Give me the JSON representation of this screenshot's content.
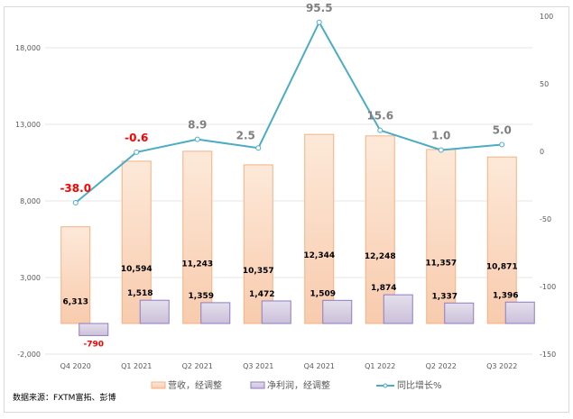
{
  "chart_data": {
    "type": "bar+line",
    "categories": [
      "Q4 2020",
      "Q1 2021",
      "Q2 2021",
      "Q3 2021",
      "Q4 2021",
      "Q1 2022",
      "Q2 2022",
      "Q3 2022"
    ],
    "series": [
      {
        "name": "营收，经调整",
        "type": "bar",
        "axis": "left",
        "values": [
          6313,
          10594,
          11243,
          10357,
          12344,
          12248,
          11357,
          10871
        ],
        "labels": [
          "6,313",
          "10,594",
          "11,243",
          "10,357",
          "12,344",
          "12,248",
          "11,357",
          "10,871"
        ],
        "color": "#F4B183"
      },
      {
        "name": "净利润，经调整",
        "type": "bar",
        "axis": "left",
        "values": [
          -790,
          1518,
          1359,
          1472,
          1509,
          1874,
          1337,
          1396
        ],
        "labels": [
          "-790",
          "1,518",
          "1,359",
          "1,472",
          "1,509",
          "1,874",
          "1,337",
          "1,396"
        ],
        "color": "#B4A7D6"
      },
      {
        "name": "同比增长%",
        "type": "line",
        "axis": "right",
        "values": [
          -38.0,
          -0.6,
          8.9,
          2.5,
          95.5,
          15.6,
          1.0,
          5.0
        ],
        "labels": [
          "-38.0",
          "-0.6",
          "8.9",
          "2.5",
          "95.5",
          "15.6",
          "1.0",
          "5.0"
        ],
        "color": "#4BACC6"
      }
    ],
    "left_axis": {
      "ylim": [
        -2000,
        18000
      ],
      "ticks": [
        "-2,000",
        "3,000",
        "8,000",
        "13,000",
        "18,000"
      ]
    },
    "right_axis": {
      "ylim": [
        -150,
        100
      ],
      "ticks": [
        "-150",
        "-100",
        "-50",
        "0",
        "50",
        "100"
      ]
    },
    "grid": true,
    "legend": "bottom",
    "negative_label_color": "#FF0000",
    "positive_label_color": "#7F7F7F"
  },
  "source": "数据来源：FXTM富拓、彭博"
}
